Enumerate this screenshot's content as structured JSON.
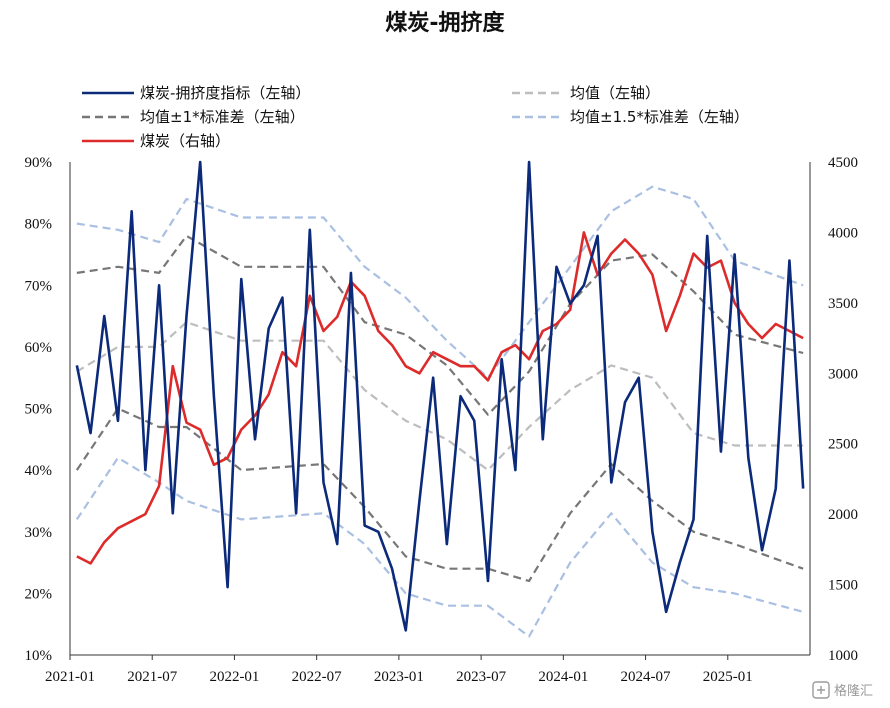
{
  "chart_data": {
    "type": "line",
    "title": "煤炭-拥挤度",
    "x_ticks": [
      "2021-01",
      "2021-07",
      "2022-01",
      "2022-07",
      "2023-01",
      "2023-07",
      "2024-01",
      "2024-07",
      "2025-01"
    ],
    "x_range": [
      "2021-01",
      "2025-06"
    ],
    "y_left": {
      "ticks": [
        "10%",
        "20%",
        "30%",
        "40%",
        "50%",
        "60%",
        "70%",
        "80%",
        "90%"
      ],
      "range": [
        10,
        90
      ]
    },
    "y_right": {
      "ticks": [
        "1000",
        "1500",
        "2000",
        "2500",
        "3000",
        "3500",
        "4000",
        "4500"
      ],
      "range": [
        1000,
        4500
      ]
    },
    "legend": [
      {
        "label": "煤炭-拥挤度指标（左轴）",
        "color": "#0c2a7a",
        "dash": "solid"
      },
      {
        "label": "均值（左轴）",
        "color": "#bdbdbd",
        "dash": "dashed"
      },
      {
        "label": "均值±1*标准差（左轴）",
        "color": "#777777",
        "dash": "dashed"
      },
      {
        "label": "均值±1.5*标准差（左轴）",
        "color": "#aac0e2",
        "dash": "dashed"
      },
      {
        "label": "煤炭（右轴）",
        "color": "#dd2a2a",
        "dash": "solid"
      }
    ],
    "series": [
      {
        "name": "煤炭-拥挤度指标（左轴）",
        "axis": "left",
        "color": "#0c2a7a",
        "x": [
          "2021-01",
          "2021-02",
          "2021-03",
          "2021-04",
          "2021-05",
          "2021-06",
          "2021-07",
          "2021-08",
          "2021-09",
          "2021-10",
          "2021-11",
          "2021-12",
          "2022-01",
          "2022-02",
          "2022-03",
          "2022-04",
          "2022-05",
          "2022-06",
          "2022-07",
          "2022-08",
          "2022-09",
          "2022-10",
          "2022-11",
          "2022-12",
          "2023-01",
          "2023-02",
          "2023-03",
          "2023-04",
          "2023-05",
          "2023-06",
          "2023-07",
          "2023-08",
          "2023-09",
          "2023-10",
          "2023-11",
          "2023-12",
          "2024-01",
          "2024-02",
          "2024-03",
          "2024-04",
          "2024-05",
          "2024-06",
          "2024-07",
          "2024-08",
          "2024-09",
          "2024-10",
          "2024-11",
          "2024-12",
          "2025-01",
          "2025-02",
          "2025-03",
          "2025-04",
          "2025-05",
          "2025-06"
        ],
        "values": [
          57,
          46,
          65,
          48,
          82,
          40,
          70,
          33,
          65,
          90,
          52,
          21,
          71,
          45,
          63,
          68,
          33,
          79,
          38,
          28,
          72,
          31,
          30,
          24,
          14,
          35,
          55,
          28,
          52,
          48,
          22,
          58,
          40,
          90,
          45,
          73,
          67,
          70,
          78,
          38,
          51,
          55,
          30,
          17,
          25,
          32,
          78,
          43,
          75,
          42,
          27,
          37,
          74,
          37
        ]
      },
      {
        "name": "煤炭（右轴）",
        "axis": "right",
        "color": "#dd2a2a",
        "x": [
          "2021-01",
          "2021-02",
          "2021-03",
          "2021-04",
          "2021-05",
          "2021-06",
          "2021-07",
          "2021-08",
          "2021-09",
          "2021-10",
          "2021-11",
          "2021-12",
          "2022-01",
          "2022-02",
          "2022-03",
          "2022-04",
          "2022-05",
          "2022-06",
          "2022-07",
          "2022-08",
          "2022-09",
          "2022-10",
          "2022-11",
          "2022-12",
          "2023-01",
          "2023-02",
          "2023-03",
          "2023-04",
          "2023-05",
          "2023-06",
          "2023-07",
          "2023-08",
          "2023-09",
          "2023-10",
          "2023-11",
          "2023-12",
          "2024-01",
          "2024-02",
          "2024-03",
          "2024-04",
          "2024-05",
          "2024-06",
          "2024-07",
          "2024-08",
          "2024-09",
          "2024-10",
          "2024-11",
          "2024-12",
          "2025-01",
          "2025-02",
          "2025-03",
          "2025-04",
          "2025-05",
          "2025-06"
        ],
        "values": [
          1700,
          1650,
          1800,
          1900,
          1950,
          2000,
          2200,
          3050,
          2650,
          2600,
          2350,
          2400,
          2600,
          2700,
          2850,
          3150,
          3050,
          3550,
          3300,
          3400,
          3650,
          3550,
          3300,
          3200,
          3050,
          3000,
          3150,
          3100,
          3050,
          3050,
          2950,
          3150,
          3200,
          3100,
          3300,
          3350,
          3450,
          4000,
          3700,
          3850,
          3950,
          3850,
          3700,
          3300,
          3550,
          3850,
          3750,
          3800,
          3500,
          3350,
          3250,
          3350,
          3300,
          3250
        ]
      },
      {
        "name": "均值（左轴）",
        "axis": "left",
        "color": "#bdbdbd",
        "x": [
          "2021-01",
          "2021-04",
          "2021-07",
          "2021-09",
          "2022-01",
          "2022-07",
          "2022-10",
          "2023-01",
          "2023-04",
          "2023-07",
          "2023-10",
          "2024-01",
          "2024-04",
          "2024-07",
          "2024-10",
          "2025-01",
          "2025-06"
        ],
        "values": [
          56,
          60,
          60,
          64,
          61,
          61,
          53,
          48,
          45,
          40,
          47,
          53,
          57,
          55,
          46,
          44,
          44
        ]
      },
      {
        "name": "均值+1*标准差（左轴）",
        "axis": "left",
        "color": "#777777",
        "x": [
          "2021-01",
          "2021-04",
          "2021-07",
          "2021-09",
          "2022-01",
          "2022-07",
          "2022-10",
          "2023-01",
          "2023-04",
          "2023-07",
          "2023-10",
          "2024-01",
          "2024-04",
          "2024-07",
          "2024-10",
          "2025-01",
          "2025-06"
        ],
        "values": [
          72,
          73,
          72,
          78,
          73,
          73,
          64,
          62,
          57,
          49,
          56,
          67,
          74,
          75,
          69,
          62,
          59
        ]
      },
      {
        "name": "均值-1*标准差（左轴）",
        "axis": "left",
        "color": "#777777",
        "x": [
          "2021-01",
          "2021-04",
          "2021-07",
          "2021-09",
          "2022-01",
          "2022-07",
          "2022-10",
          "2023-01",
          "2023-04",
          "2023-07",
          "2023-10",
          "2024-01",
          "2024-04",
          "2024-07",
          "2024-10",
          "2025-01",
          "2025-06"
        ],
        "values": [
          40,
          50,
          47,
          47,
          40,
          41,
          34,
          26,
          24,
          24,
          22,
          33,
          41,
          35,
          30,
          28,
          24
        ]
      },
      {
        "name": "均值+1.5*标准差（左轴）",
        "axis": "left",
        "color": "#aac0e2",
        "x": [
          "2021-01",
          "2021-04",
          "2021-07",
          "2021-09",
          "2022-01",
          "2022-07",
          "2022-10",
          "2023-01",
          "2023-04",
          "2023-07",
          "2023-10",
          "2024-01",
          "2024-04",
          "2024-07",
          "2024-10",
          "2025-01",
          "2025-06"
        ],
        "values": [
          80,
          79,
          77,
          84,
          81,
          81,
          73,
          68,
          61,
          55,
          64,
          73,
          82,
          86,
          84,
          74,
          70
        ]
      },
      {
        "name": "均值-1.5*标准差（左轴）",
        "axis": "left",
        "color": "#aac0e2",
        "x": [
          "2021-01",
          "2021-04",
          "2021-07",
          "2021-09",
          "2022-01",
          "2022-07",
          "2022-10",
          "2023-01",
          "2023-04",
          "2023-07",
          "2023-10",
          "2024-01",
          "2024-04",
          "2024-07",
          "2024-10",
          "2025-01",
          "2025-06"
        ],
        "values": [
          32,
          42,
          38,
          35,
          32,
          33,
          28,
          20,
          18,
          18,
          13,
          25,
          33,
          25,
          21,
          20,
          17
        ]
      }
    ]
  },
  "watermark": "格隆汇"
}
